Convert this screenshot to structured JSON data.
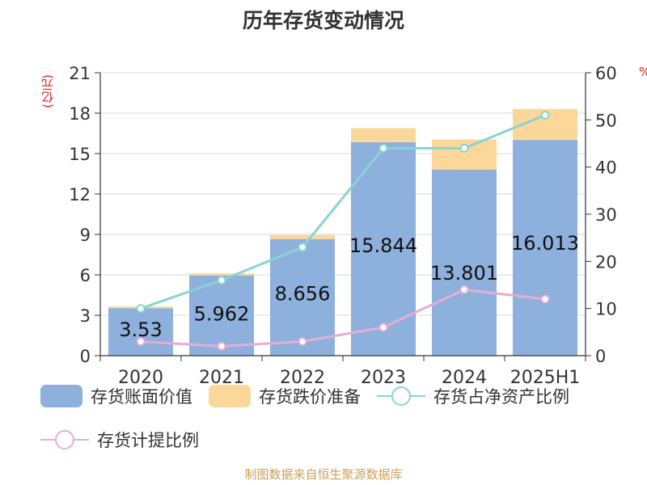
{
  "title": "历年存货变动情况",
  "footer": "制图数据来自恒生聚源数据库",
  "colors": {
    "bar_book": "#8eb0dc",
    "bar_reserve": "#fbd89a",
    "line_ratio": "#88d4d2",
    "line_provision": "#e4aed4",
    "unit": "#e02020"
  },
  "chart_data": {
    "type": "bar",
    "title": "历年存货变动情况",
    "categories": [
      "2020",
      "2021",
      "2022",
      "2023",
      "2024",
      "2025H1"
    ],
    "y_left": {
      "label": "(亿元)",
      "range": [
        0,
        21
      ],
      "ticks": [
        "0",
        "3",
        "6",
        "9",
        "12",
        "15",
        "18",
        "21"
      ]
    },
    "y_right": {
      "label": "%",
      "range": [
        0,
        60
      ],
      "ticks": [
        "0",
        "10",
        "20",
        "30",
        "40",
        "50",
        "60"
      ]
    },
    "series": [
      {
        "name": "存货账面价值",
        "type": "bar",
        "axis": "left",
        "values": [
          3.53,
          5.962,
          8.656,
          15.844,
          13.801,
          16.013
        ],
        "labels": [
          "3.53",
          "5.962",
          "8.656",
          "15.844",
          "13.801",
          "16.013"
        ]
      },
      {
        "name": "存货跌价准备",
        "type": "bar-stack",
        "axis": "left",
        "values": [
          0.12,
          0.15,
          0.3,
          1.05,
          2.25,
          2.3
        ]
      },
      {
        "name": "存货占净资产比例",
        "type": "line",
        "axis": "right",
        "values": [
          10.0,
          16.0,
          23.0,
          44.0,
          44.0,
          51.0
        ]
      },
      {
        "name": "存货计提比例",
        "type": "line",
        "axis": "right",
        "values": [
          3.0,
          2.0,
          3.0,
          6.0,
          14.0,
          12.0
        ]
      }
    ],
    "grid": true,
    "legend": "bottom"
  }
}
